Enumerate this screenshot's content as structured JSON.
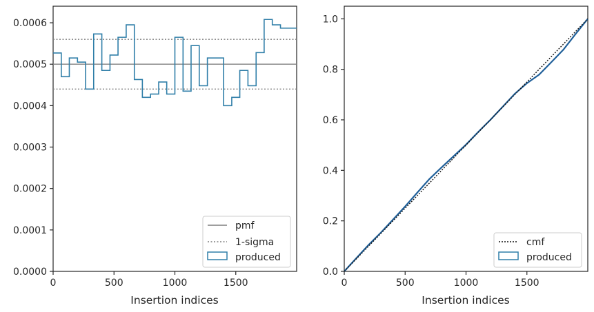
{
  "chart_data": [
    {
      "type": "histogram-step",
      "xlabel": "Insertion indices",
      "ylabel": "",
      "xlim": [
        0,
        2000
      ],
      "ylim": [
        0,
        0.00064
      ],
      "x_ticks": [
        0,
        500,
        1000,
        1500
      ],
      "y_ticks": [
        0.0,
        0.0001,
        0.0002,
        0.0003,
        0.0004,
        0.0005,
        0.0006
      ],
      "y_tick_labels": [
        "0.0000",
        "0.0001",
        "0.0002",
        "0.0003",
        "0.0004",
        "0.0005",
        "0.0006"
      ],
      "grid": false,
      "legend_position": "lower right",
      "colors": {
        "produced": "#2f7ea8",
        "pmf": "#7f7f7f",
        "sigma": "#7f7f7f"
      },
      "bin_edges": [
        0,
        67,
        133,
        200,
        267,
        333,
        400,
        467,
        533,
        600,
        667,
        733,
        800,
        867,
        933,
        1000,
        1067,
        1133,
        1200,
        1267,
        1333,
        1400,
        1467,
        1533,
        1600,
        1667,
        1733,
        1800,
        1867,
        1933,
        2000
      ],
      "series": [
        {
          "name": "pmf",
          "kind": "hline",
          "value": 0.0005
        },
        {
          "name": "1-sigma",
          "kind": "hlines",
          "values": [
            0.00044,
            0.00056
          ]
        },
        {
          "name": "produced",
          "kind": "step",
          "values": [
            0.000527,
            0.00047,
            0.000515,
            0.000505,
            0.00044,
            0.000573,
            0.000485,
            0.000522,
            0.000565,
            0.000595,
            0.000463,
            0.00042,
            0.000428,
            0.000457,
            0.000428,
            0.000565,
            0.000435,
            0.000545,
            0.000448,
            0.000515,
            0.000515,
            0.0004,
            0.00042,
            0.000485,
            0.000448,
            0.000528,
            0.000608,
            0.000595,
            0.000587,
            0.000587
          ]
        }
      ],
      "legend": [
        "pmf",
        "1-sigma",
        "produced"
      ]
    },
    {
      "type": "line",
      "xlabel": "Insertion indices",
      "ylabel": "",
      "xlim": [
        0,
        2000
      ],
      "ylim": [
        0,
        1.05
      ],
      "x_ticks": [
        0,
        500,
        1000,
        1500
      ],
      "y_ticks": [
        0.0,
        0.2,
        0.4,
        0.6,
        0.8,
        1.0
      ],
      "y_tick_labels": [
        "0.0",
        "0.2",
        "0.4",
        "0.6",
        "0.8",
        "1.0"
      ],
      "grid": false,
      "legend_position": "lower right",
      "colors": {
        "produced": "#1f5f99",
        "cmf": "#111111"
      },
      "series": [
        {
          "name": "cmf",
          "kind": "dotted-line",
          "x": [
            0,
            2000
          ],
          "y": [
            0,
            1.0
          ]
        },
        {
          "name": "produced",
          "kind": "line",
          "x": [
            0,
            100,
            200,
            300,
            400,
            500,
            600,
            700,
            800,
            900,
            1000,
            1100,
            1200,
            1300,
            1400,
            1500,
            1600,
            1700,
            1800,
            1900,
            2000
          ],
          "y": [
            0,
            0.053,
            0.105,
            0.153,
            0.205,
            0.257,
            0.312,
            0.366,
            0.412,
            0.457,
            0.502,
            0.552,
            0.6,
            0.651,
            0.703,
            0.745,
            0.779,
            0.828,
            0.878,
            0.94,
            1.0
          ]
        }
      ],
      "legend": [
        "cmf",
        "produced"
      ]
    }
  ]
}
